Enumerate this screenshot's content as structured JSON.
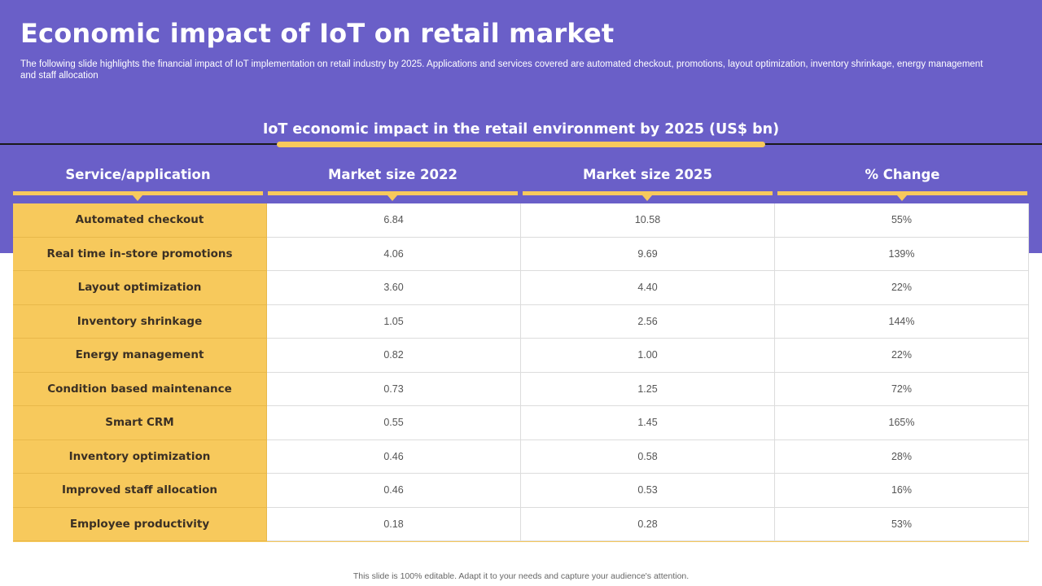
{
  "title": "Economic impact of IoT on retail market",
  "subtitle": "The following slide highlights the financial impact of IoT  implementation on retail industry by 2025. Applications and services covered are automated checkout, promotions, layout optimization, inventory shrinkage, energy management and staff allocation",
  "table": {
    "title": "IoT economic impact in the retail environment  by 2025 (US$ bn)",
    "headers": [
      "Service/application",
      "Market size 2022",
      "Market size 2025",
      "% Change"
    ],
    "rows": [
      [
        "Automated checkout",
        "6.84",
        "10.58",
        "55%"
      ],
      [
        "Real time in-store promotions",
        "4.06",
        "9.69",
        "139%"
      ],
      [
        "Layout optimization",
        "3.60",
        "4.40",
        "22%"
      ],
      [
        "Inventory shrinkage",
        "1.05",
        "2.56",
        "144%"
      ],
      [
        "Energy management",
        "0.82",
        "1.00",
        "22%"
      ],
      [
        "Condition based maintenance",
        "0.73",
        "1.25",
        "72%"
      ],
      [
        "Smart CRM",
        "0.55",
        "1.45",
        "165%"
      ],
      [
        "Inventory optimization",
        "0.46",
        "0.58",
        "28%"
      ],
      [
        "Improved staff allocation",
        "0.46",
        "0.53",
        "16%"
      ],
      [
        "Employee productivity",
        "0.18",
        "0.28",
        "53%"
      ]
    ]
  },
  "footer": "This slide is 100% editable. Adapt it to your needs and capture your audience's attention.",
  "colors": {
    "band": "#6a5fc8",
    "accent": "#f7c95c",
    "text_dark": "#3b3024"
  }
}
